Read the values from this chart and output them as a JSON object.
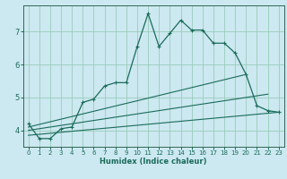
{
  "title": "",
  "xlabel": "Humidex (Indice chaleur)",
  "background_color": "#cce8f0",
  "grid_color": "#99ccbb",
  "line_color": "#1a6b5a",
  "spine_color": "#336655",
  "xlim": [
    -0.5,
    23.5
  ],
  "ylim": [
    3.5,
    7.8
  ],
  "yticks": [
    4,
    5,
    6,
    7
  ],
  "xticks": [
    0,
    1,
    2,
    3,
    4,
    5,
    6,
    7,
    8,
    9,
    10,
    11,
    12,
    13,
    14,
    15,
    16,
    17,
    18,
    19,
    20,
    21,
    22,
    23
  ],
  "series0_x": [
    0,
    1,
    2,
    3,
    4,
    5,
    6,
    7,
    8,
    9,
    10,
    11,
    12,
    13,
    14,
    15,
    16,
    17,
    18,
    19,
    20,
    21,
    22,
    23
  ],
  "series0_y": [
    4.2,
    3.75,
    3.75,
    4.05,
    4.1,
    4.85,
    4.95,
    5.35,
    5.45,
    5.45,
    6.55,
    7.55,
    6.55,
    6.95,
    7.35,
    7.05,
    7.05,
    6.65,
    6.65,
    6.35,
    5.7,
    4.75,
    4.6,
    4.55
  ],
  "line1_x": [
    0,
    20
  ],
  "line1_y": [
    4.1,
    5.7
  ],
  "line2_x": [
    0,
    22
  ],
  "line2_y": [
    4.0,
    5.1
  ],
  "line3_x": [
    0,
    23
  ],
  "line3_y": [
    3.85,
    4.55
  ],
  "tick_fontsize": 5,
  "xlabel_fontsize": 6,
  "xlabel_fontweight": "bold"
}
